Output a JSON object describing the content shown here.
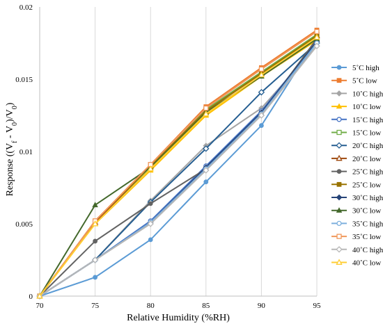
{
  "chart_data": {
    "type": "line",
    "title": "",
    "xlabel": "Relative Humidity (%RH)",
    "ylabel_parts": [
      "Response ((V",
      "f",
      " - V",
      "0",
      ")/V",
      "0",
      ")"
    ],
    "x": [
      70,
      75,
      80,
      85,
      90,
      95
    ],
    "x_ticks": [
      "70",
      "75",
      "80",
      "85",
      "90",
      "95"
    ],
    "xlim": [
      70,
      95
    ],
    "ylim": [
      0,
      0.02
    ],
    "y_ticks": [
      0,
      0.005,
      0.01,
      0.015,
      0.02
    ],
    "y_tick_labels": [
      "0",
      "0.005",
      "0.01",
      "0.015",
      "0.02"
    ],
    "grid": "vertical",
    "legend_position": "right",
    "series": [
      {
        "name": "5˚C high",
        "color": "#5b9bd5",
        "marker": "circle",
        "values": [
          0,
          0.0013,
          0.0039,
          0.0079,
          0.0118,
          0.0178
        ]
      },
      {
        "name": "5˚C low",
        "color": "#ed7d31",
        "marker": "square",
        "values": [
          0,
          0.0052,
          0.0091,
          0.0131,
          0.0158,
          0.0184
        ]
      },
      {
        "name": "10˚C high",
        "color": "#a5a5a5",
        "marker": "diamond",
        "values": [
          0,
          0.0025,
          0.0066,
          0.0104,
          0.013,
          0.0173
        ]
      },
      {
        "name": "10˚C low",
        "color": "#ffc000",
        "marker": "triangle",
        "values": [
          0,
          0.005,
          0.0087,
          0.0125,
          0.0152,
          0.0177
        ]
      },
      {
        "name": "15˚C high",
        "color": "#4472c4",
        "marker": "circle-open",
        "values": [
          0,
          0.0025,
          0.0052,
          0.009,
          0.0128,
          0.0176
        ]
      },
      {
        "name": "15˚C low",
        "color": "#70ad47",
        "marker": "square-open",
        "values": [
          0,
          0.0051,
          0.0089,
          0.0129,
          0.0155,
          0.0181
        ]
      },
      {
        "name": "20˚C high",
        "color": "#255e91",
        "marker": "diamond-open",
        "values": [
          0,
          0.0025,
          0.0065,
          0.0102,
          0.0141,
          0.0175
        ]
      },
      {
        "name": "20˚C low",
        "color": "#9e480e",
        "marker": "triangle-open",
        "values": [
          0,
          0.0051,
          0.009,
          0.0128,
          0.0154,
          0.018
        ]
      },
      {
        "name": "25˚C high",
        "color": "#636363",
        "marker": "circle",
        "values": [
          0,
          0.0038,
          0.0064,
          0.0088,
          0.0126,
          0.0178
        ]
      },
      {
        "name": "25˚C low",
        "color": "#997300",
        "marker": "square",
        "values": [
          0,
          0.0052,
          0.009,
          0.0128,
          0.0154,
          0.018
        ]
      },
      {
        "name": "30˚C high",
        "color": "#264478",
        "marker": "diamond",
        "values": [
          0,
          0.0025,
          0.0051,
          0.0089,
          0.0127,
          0.0176
        ]
      },
      {
        "name": "30˚C low",
        "color": "#43682b",
        "marker": "triangle",
        "values": [
          0,
          0.0063,
          0.0089,
          0.0127,
          0.0152,
          0.0178
        ]
      },
      {
        "name": "35˚C high",
        "color": "#7cafdd",
        "marker": "circle-open",
        "values": [
          0,
          0.0025,
          0.0051,
          0.0088,
          0.0126,
          0.0175
        ]
      },
      {
        "name": "35˚C low",
        "color": "#f1975a",
        "marker": "square-open",
        "values": [
          0,
          0.0052,
          0.0091,
          0.013,
          0.0157,
          0.0183
        ]
      },
      {
        "name": "40˚C high",
        "color": "#b7b7b7",
        "marker": "diamond-open",
        "values": [
          0,
          0.0025,
          0.005,
          0.0087,
          0.0125,
          0.0173
        ]
      },
      {
        "name": "40˚C low",
        "color": "#ffcd33",
        "marker": "triangle-open",
        "values": [
          0,
          0.005,
          0.0088,
          0.0126,
          0.0153,
          0.0179
        ]
      }
    ]
  }
}
